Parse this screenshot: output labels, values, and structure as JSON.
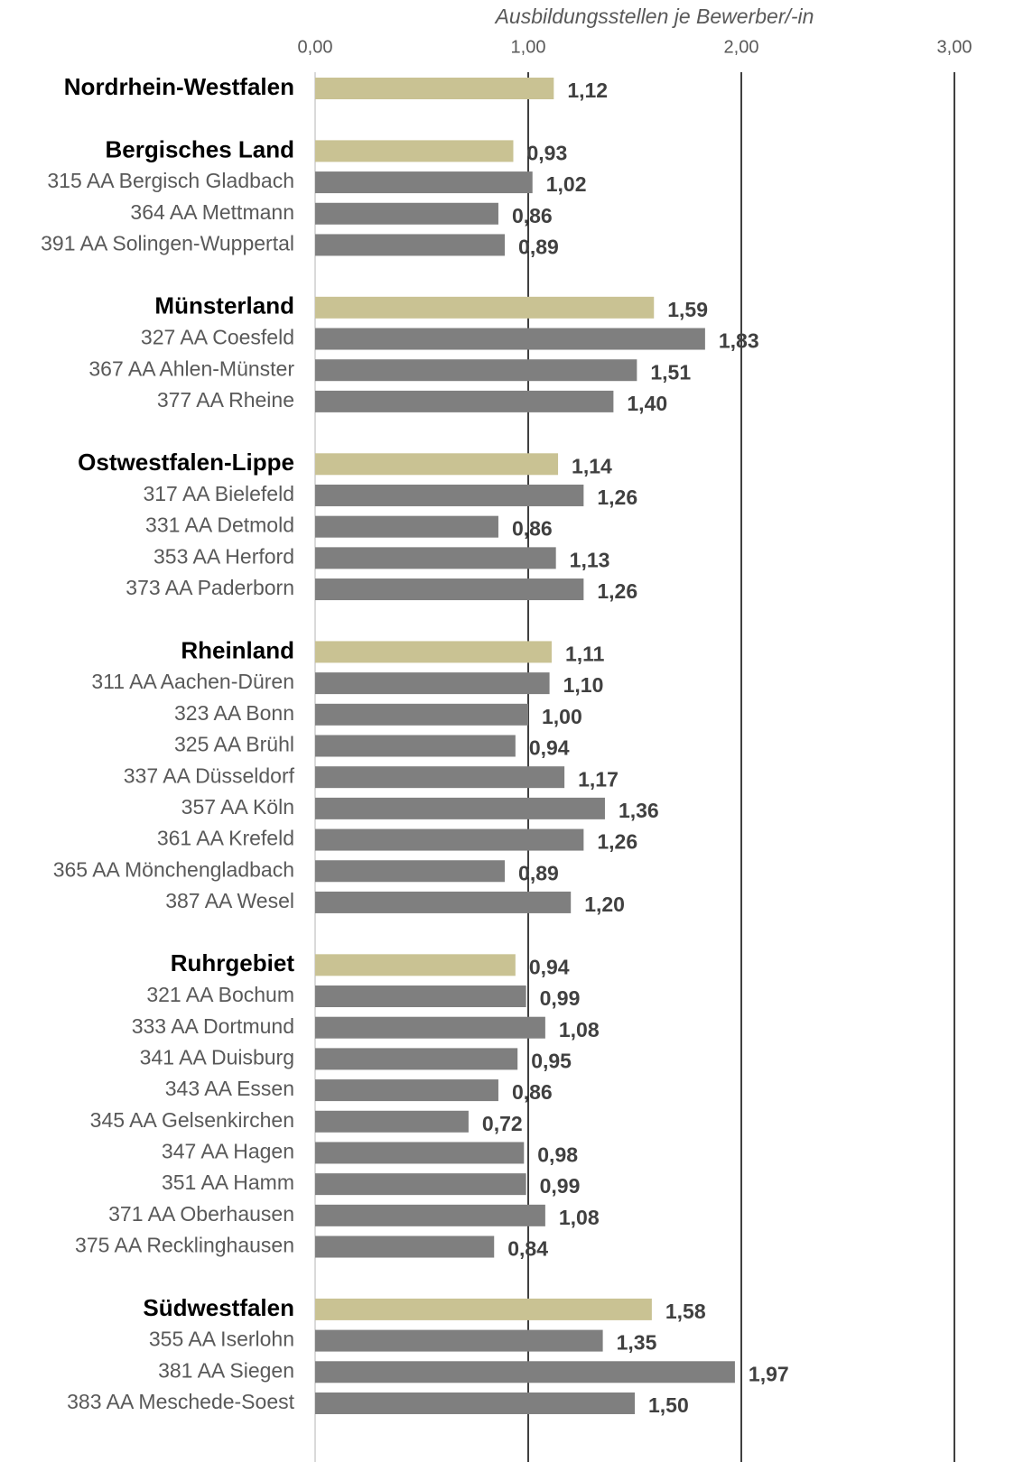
{
  "chart_data": {
    "type": "bar",
    "orientation": "horizontal",
    "x_label": "Ausbildungsstellen je Bewerber/-in",
    "xlim": [
      0,
      3
    ],
    "xticks": [
      {
        "value": 0,
        "label": "0,00"
      },
      {
        "value": 1,
        "label": "1,00"
      },
      {
        "value": 2,
        "label": "2,00"
      },
      {
        "value": 3,
        "label": "3,00"
      }
    ],
    "grid": true,
    "group_color": "#c9c293",
    "color": "#7f7f7f",
    "groups": [
      {
        "name": "Nordrhein-Westfalen",
        "value": 1.12,
        "value_label": "1,12",
        "items": []
      },
      {
        "name": "Bergisches Land",
        "value": 0.93,
        "value_label": "0,93",
        "items": [
          {
            "name": "315 AA Bergisch Gladbach",
            "value": 1.02,
            "value_label": "1,02"
          },
          {
            "name": "364 AA Mettmann",
            "value": 0.86,
            "value_label": "0,86"
          },
          {
            "name": "391 AA Solingen-Wuppertal",
            "value": 0.89,
            "value_label": "0,89"
          }
        ]
      },
      {
        "name": "Münsterland",
        "value": 1.59,
        "value_label": "1,59",
        "items": [
          {
            "name": "327 AA Coesfeld",
            "value": 1.83,
            "value_label": "1,83"
          },
          {
            "name": "367 AA Ahlen-Münster",
            "value": 1.51,
            "value_label": "1,51"
          },
          {
            "name": "377 AA Rheine",
            "value": 1.4,
            "value_label": "1,40"
          }
        ]
      },
      {
        "name": "Ostwestfalen-Lippe",
        "value": 1.14,
        "value_label": "1,14",
        "items": [
          {
            "name": "317 AA Bielefeld",
            "value": 1.26,
            "value_label": "1,26"
          },
          {
            "name": "331 AA Detmold",
            "value": 0.86,
            "value_label": "0,86"
          },
          {
            "name": "353 AA Herford",
            "value": 1.13,
            "value_label": "1,13"
          },
          {
            "name": "373 AA Paderborn",
            "value": 1.26,
            "value_label": "1,26"
          }
        ]
      },
      {
        "name": "Rheinland",
        "value": 1.11,
        "value_label": "1,11",
        "items": [
          {
            "name": "311 AA Aachen-Düren",
            "value": 1.1,
            "value_label": "1,10"
          },
          {
            "name": "323 AA Bonn",
            "value": 1.0,
            "value_label": "1,00"
          },
          {
            "name": "325 AA Brühl",
            "value": 0.94,
            "value_label": "0,94"
          },
          {
            "name": "337 AA Düsseldorf",
            "value": 1.17,
            "value_label": "1,17"
          },
          {
            "name": "357 AA Köln",
            "value": 1.36,
            "value_label": "1,36"
          },
          {
            "name": "361 AA Krefeld",
            "value": 1.26,
            "value_label": "1,26"
          },
          {
            "name": "365 AA Mönchengladbach",
            "value": 0.89,
            "value_label": "0,89"
          },
          {
            "name": "387 AA Wesel",
            "value": 1.2,
            "value_label": "1,20"
          }
        ]
      },
      {
        "name": "Ruhrgebiet",
        "value": 0.94,
        "value_label": "0,94",
        "items": [
          {
            "name": "321 AA Bochum",
            "value": 0.99,
            "value_label": "0,99"
          },
          {
            "name": "333 AA Dortmund",
            "value": 1.08,
            "value_label": "1,08"
          },
          {
            "name": "341 AA Duisburg",
            "value": 0.95,
            "value_label": "0,95"
          },
          {
            "name": "343 AA Essen",
            "value": 0.86,
            "value_label": "0,86"
          },
          {
            "name": "345 AA Gelsenkirchen",
            "value": 0.72,
            "value_label": "0,72"
          },
          {
            "name": "347 AA Hagen",
            "value": 0.98,
            "value_label": "0,98"
          },
          {
            "name": "351 AA Hamm",
            "value": 0.99,
            "value_label": "0,99"
          },
          {
            "name": "371 AA Oberhausen",
            "value": 1.08,
            "value_label": "1,08"
          },
          {
            "name": "375 AA Recklinghausen",
            "value": 0.84,
            "value_label": "0,84"
          }
        ]
      },
      {
        "name": "Südwestfalen",
        "value": 1.58,
        "value_label": "1,58",
        "items": [
          {
            "name": "355 AA Iserlohn",
            "value": 1.35,
            "value_label": "1,35"
          },
          {
            "name": "381 AA Siegen",
            "value": 1.97,
            "value_label": "1,97"
          },
          {
            "name": "383 AA Meschede-Soest",
            "value": 1.5,
            "value_label": "1,50"
          }
        ]
      }
    ]
  }
}
